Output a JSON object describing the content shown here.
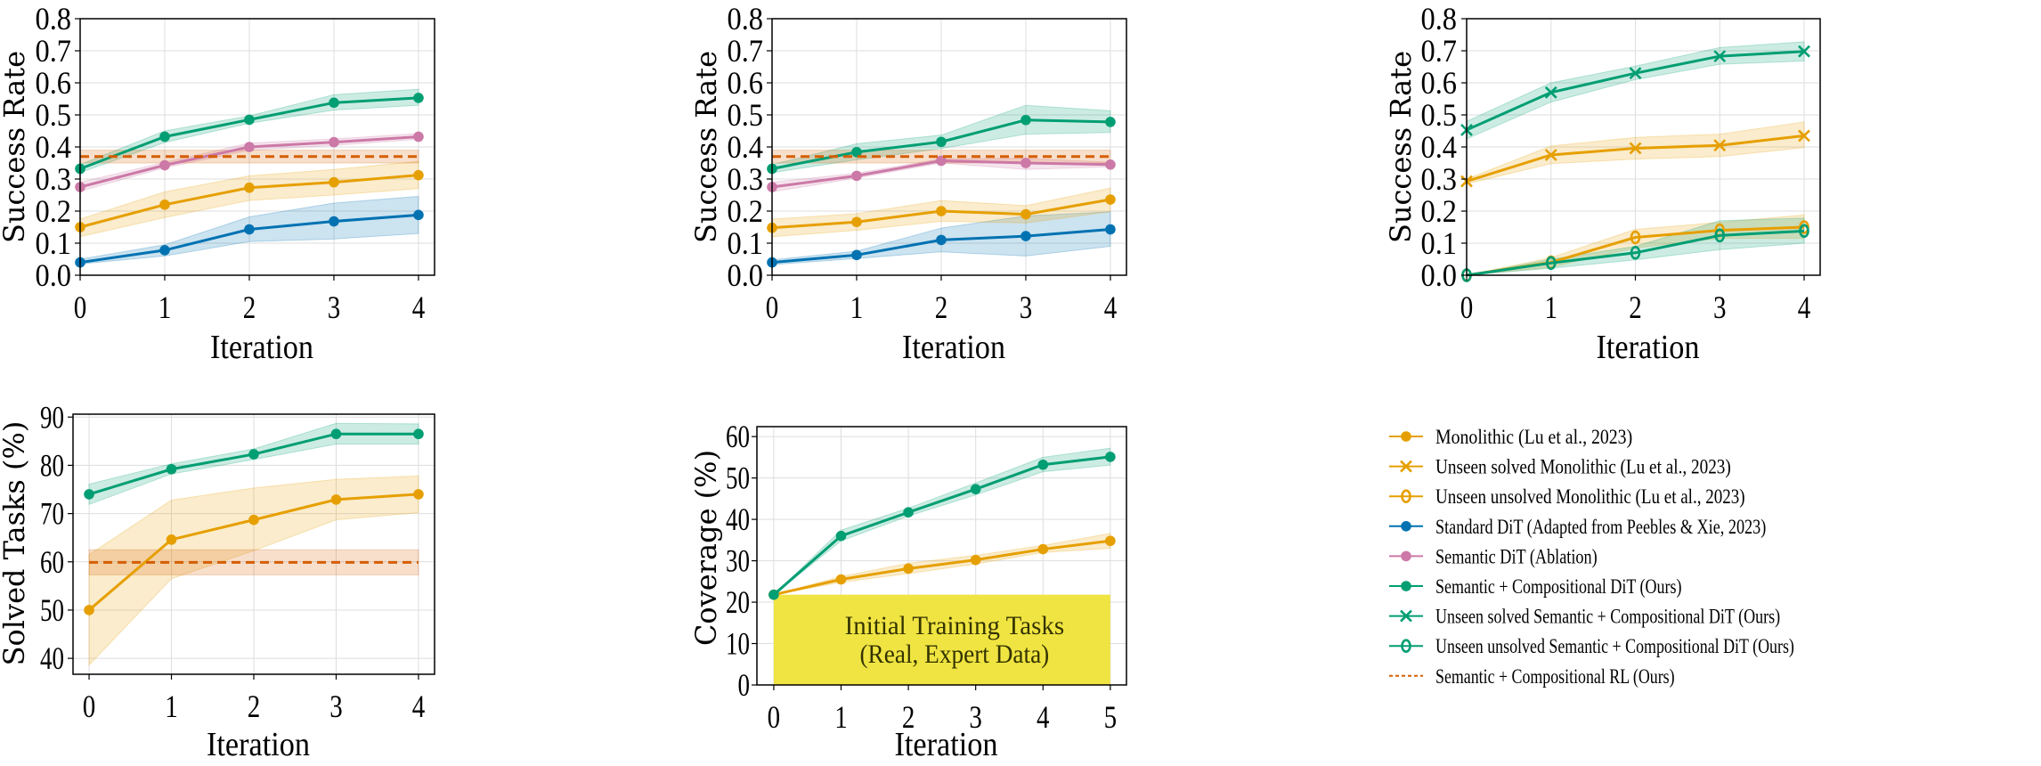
{
  "colors": {
    "monolithic": "#e69f00",
    "standard_dit": "#0072b2",
    "semantic_dit": "#cc79a7",
    "ours": "#009e73",
    "rl": "#d55e00",
    "initial_region": "#f0e442",
    "grid": "#dddddd"
  },
  "legend": {
    "placement": "right",
    "entries": [
      {
        "label": "Monolithic (Lu et al., 2023)",
        "color": "#e69f00",
        "marker": "circle",
        "style": "solid"
      },
      {
        "label": "Unseen solved Monolithic (Lu et al., 2023)",
        "color": "#e69f00",
        "marker": "x",
        "style": "solid"
      },
      {
        "label": "Unseen unsolved Monolithic (Lu et al., 2023)",
        "color": "#e69f00",
        "marker": "hollow-o",
        "style": "solid"
      },
      {
        "label": "Standard DiT (Adapted from Peebles & Xie, 2023)",
        "color": "#0072b2",
        "marker": "circle",
        "style": "solid"
      },
      {
        "label": "Semantic DiT (Ablation)",
        "color": "#cc79a7",
        "marker": "circle",
        "style": "solid"
      },
      {
        "label": "Semantic + Compositional DiT (Ours)",
        "color": "#009e73",
        "marker": "circle",
        "style": "solid"
      },
      {
        "label": "Unseen solved Semantic + Compositional DiT (Ours)",
        "color": "#009e73",
        "marker": "x",
        "style": "solid"
      },
      {
        "label": "Unseen unsolved Semantic + Compositional DiT (Ours)",
        "color": "#009e73",
        "marker": "hollow-o",
        "style": "solid"
      },
      {
        "label": "Semantic + Compositional RL (Ours)",
        "color": "#d55e00",
        "marker": "none",
        "style": "dashed"
      }
    ]
  },
  "chart_data": [
    {
      "type": "line",
      "xlabel": "Iteration",
      "ylabel": "Success Rate",
      "x": [
        0,
        1,
        2,
        3,
        4
      ],
      "xticks": [
        "0",
        "1",
        "2",
        "3",
        "4"
      ],
      "yticks": [
        "0.0",
        "0.1",
        "0.2",
        "0.3",
        "0.4",
        "0.5",
        "0.6",
        "0.7",
        "0.8"
      ],
      "xlim": [
        0,
        4.19
      ],
      "ylim": [
        0,
        0.8
      ],
      "grid": true,
      "series": [
        {
          "legend": 3,
          "marker": "circle",
          "color": "#0072b2",
          "values": [
            0.04,
            0.078,
            0.143,
            0.168,
            0.188
          ],
          "lower": [
            0.035,
            0.06,
            0.105,
            0.113,
            0.13
          ],
          "upper": [
            0.05,
            0.095,
            0.182,
            0.225,
            0.246
          ]
        },
        {
          "legend": 0,
          "marker": "circle",
          "color": "#e69f00",
          "values": [
            0.15,
            0.22,
            0.273,
            0.29,
            0.312
          ],
          "lower": [
            0.12,
            0.18,
            0.233,
            0.25,
            0.27
          ],
          "upper": [
            0.175,
            0.26,
            0.31,
            0.33,
            0.355
          ]
        },
        {
          "legend": 4,
          "marker": "circle",
          "color": "#cc79a7",
          "values": [
            0.275,
            0.343,
            0.4,
            0.415,
            0.432
          ],
          "lower": [
            0.262,
            0.335,
            0.39,
            0.405,
            0.424
          ],
          "upper": [
            0.29,
            0.352,
            0.412,
            0.425,
            0.442
          ]
        },
        {
          "legend": 5,
          "marker": "circle",
          "color": "#009e73",
          "values": [
            0.332,
            0.432,
            0.485,
            0.538,
            0.553
          ],
          "lower": [
            0.32,
            0.414,
            0.474,
            0.515,
            0.53
          ],
          "upper": [
            0.345,
            0.45,
            0.497,
            0.563,
            0.58
          ]
        },
        {
          "legend": 8,
          "marker": "none",
          "dashed": true,
          "color": "#d55e00",
          "values": [
            0.37,
            0.37,
            0.37,
            0.37,
            0.37
          ],
          "lower": [
            0.35,
            0.35,
            0.35,
            0.35,
            0.35
          ],
          "upper": [
            0.39,
            0.39,
            0.39,
            0.39,
            0.39
          ]
        }
      ]
    },
    {
      "type": "line",
      "xlabel": "Iteration",
      "ylabel": "Success Rate",
      "x": [
        0,
        1,
        2,
        3,
        4
      ],
      "xticks": [
        "0",
        "1",
        "2",
        "3",
        "4"
      ],
      "yticks": [
        "0.0",
        "0.1",
        "0.2",
        "0.3",
        "0.4",
        "0.5",
        "0.6",
        "0.7",
        "0.8"
      ],
      "xlim": [
        0,
        4.19
      ],
      "ylim": [
        0,
        0.8
      ],
      "grid": true,
      "series": [
        {
          "legend": 3,
          "marker": "circle",
          "color": "#0072b2",
          "values": [
            0.04,
            0.063,
            0.11,
            0.122,
            0.143
          ],
          "lower": [
            0.033,
            0.052,
            0.073,
            0.06,
            0.09
          ],
          "upper": [
            0.048,
            0.075,
            0.147,
            0.185,
            0.198
          ]
        },
        {
          "legend": 0,
          "marker": "circle",
          "color": "#e69f00",
          "values": [
            0.148,
            0.166,
            0.2,
            0.19,
            0.236
          ],
          "lower": [
            0.12,
            0.14,
            0.168,
            0.163,
            0.198
          ],
          "upper": [
            0.175,
            0.192,
            0.233,
            0.217,
            0.272
          ]
        },
        {
          "legend": 4,
          "marker": "circle",
          "color": "#cc79a7",
          "values": [
            0.275,
            0.31,
            0.357,
            0.35,
            0.345
          ],
          "lower": [
            0.26,
            0.303,
            0.35,
            0.33,
            0.338
          ],
          "upper": [
            0.29,
            0.318,
            0.363,
            0.365,
            0.352
          ]
        },
        {
          "legend": 5,
          "marker": "circle",
          "color": "#009e73",
          "values": [
            0.332,
            0.384,
            0.416,
            0.484,
            0.478
          ],
          "lower": [
            0.32,
            0.36,
            0.395,
            0.44,
            0.445
          ],
          "upper": [
            0.345,
            0.41,
            0.437,
            0.53,
            0.513
          ]
        },
        {
          "legend": 8,
          "marker": "none",
          "dashed": true,
          "color": "#d55e00",
          "values": [
            0.37,
            0.37,
            0.37,
            0.37,
            0.37
          ],
          "lower": [
            0.35,
            0.35,
            0.35,
            0.35,
            0.35
          ],
          "upper": [
            0.39,
            0.39,
            0.39,
            0.39,
            0.39
          ]
        }
      ]
    },
    {
      "type": "line",
      "xlabel": "Iteration",
      "ylabel": "Success Rate",
      "x": [
        0,
        1,
        2,
        3,
        4
      ],
      "xticks": [
        "0",
        "1",
        "2",
        "3",
        "4"
      ],
      "yticks": [
        "0.0",
        "0.1",
        "0.2",
        "0.3",
        "0.4",
        "0.5",
        "0.6",
        "0.7",
        "0.8"
      ],
      "xlim": [
        0,
        4.19
      ],
      "ylim": [
        0,
        0.8
      ],
      "grid": true,
      "series": [
        {
          "legend": 6,
          "marker": "x",
          "color": "#009e73",
          "values": [
            0.453,
            0.57,
            0.63,
            0.683,
            0.698
          ],
          "lower": [
            0.425,
            0.54,
            0.61,
            0.658,
            0.668
          ],
          "upper": [
            0.48,
            0.6,
            0.652,
            0.71,
            0.728
          ]
        },
        {
          "legend": 1,
          "marker": "x",
          "color": "#e69f00",
          "values": [
            0.293,
            0.375,
            0.396,
            0.405,
            0.435
          ],
          "lower": [
            0.285,
            0.348,
            0.362,
            0.37,
            0.398
          ],
          "upper": [
            0.3,
            0.403,
            0.43,
            0.44,
            0.478
          ]
        },
        {
          "legend": 2,
          "marker": "hollow-o",
          "color": "#e69f00",
          "values": [
            0.0,
            0.04,
            0.118,
            0.14,
            0.15
          ],
          "lower": [
            0.0,
            0.025,
            0.085,
            0.115,
            0.115
          ],
          "upper": [
            0.0,
            0.055,
            0.143,
            0.165,
            0.188
          ]
        },
        {
          "legend": 7,
          "marker": "hollow-o",
          "color": "#009e73",
          "values": [
            0.0,
            0.038,
            0.07,
            0.124,
            0.138
          ],
          "lower": [
            0.0,
            0.022,
            0.048,
            0.08,
            0.1
          ],
          "upper": [
            0.0,
            0.05,
            0.09,
            0.17,
            0.178
          ]
        }
      ]
    },
    {
      "type": "line",
      "xlabel": "Iteration",
      "ylabel": "Solved Tasks (%)",
      "x": [
        0,
        1,
        2,
        3,
        4
      ],
      "xticks": [
        "0",
        "1",
        "2",
        "3",
        "4"
      ],
      "yticks": [
        "40",
        "50",
        "60",
        "70",
        "80",
        "90"
      ],
      "ytick_values": [
        40,
        50,
        60,
        70,
        80,
        90
      ],
      "xlim": [
        -0.195,
        4.195
      ],
      "ylim": [
        36.7,
        90.6
      ],
      "grid": true,
      "series": [
        {
          "legend": 0,
          "marker": "circle",
          "color": "#e69f00",
          "values": [
            50,
            64.6,
            68.7,
            72.9,
            74
          ],
          "lower": [
            38.6,
            56.5,
            62.3,
            68.7,
            70.2
          ],
          "upper": [
            61.5,
            72.8,
            75.3,
            77.1,
            77.8
          ]
        },
        {
          "legend": 5,
          "marker": "circle",
          "color": "#009e73",
          "values": [
            74,
            79.2,
            82.3,
            86.5,
            86.5
          ],
          "lower": [
            71.9,
            78.2,
            81.2,
            84.4,
            84.4
          ],
          "upper": [
            76.1,
            80.3,
            83.4,
            88.7,
            88.6
          ]
        },
        {
          "legend": 8,
          "marker": "none",
          "dashed": true,
          "color": "#d55e00",
          "values": [
            59.9,
            59.9,
            59.9,
            59.9,
            59.9
          ],
          "lower": [
            57.3,
            57.3,
            57.3,
            57.3,
            57.3
          ],
          "upper": [
            62.5,
            62.5,
            62.5,
            62.5,
            62.5
          ]
        }
      ]
    },
    {
      "type": "line",
      "xlabel": "Iteration",
      "ylabel": "Coverage (%)",
      "x": [
        0,
        1,
        2,
        3,
        4,
        5
      ],
      "xticks": [
        "0",
        "1",
        "2",
        "3",
        "4",
        "5"
      ],
      "yticks": [
        "0",
        "10",
        "20",
        "30",
        "40",
        "50",
        "60"
      ],
      "ytick_values": [
        0,
        10,
        20,
        30,
        40,
        50,
        60
      ],
      "xlim": [
        -0.25,
        5.24
      ],
      "ylim": [
        0,
        62.4
      ],
      "grid": true,
      "shaded_region": {
        "x": [
          0,
          5
        ],
        "y": [
          0,
          21.8
        ],
        "color": "#f0e442",
        "label_lines": [
          "Initial Training Tasks",
          "(Real, Expert Data)"
        ]
      },
      "series": [
        {
          "legend": 0,
          "marker": "circle",
          "color": "#e69f00",
          "values": [
            21.8,
            25.5,
            28.1,
            30.2,
            32.8,
            34.8
          ],
          "lower": [
            21.8,
            24.8,
            26.9,
            29.2,
            32.0,
            33.0
          ],
          "upper": [
            21.8,
            26.2,
            29.4,
            31.3,
            33.7,
            36.6
          ]
        },
        {
          "legend": 5,
          "marker": "circle",
          "color": "#009e73",
          "values": [
            21.8,
            36,
            41.7,
            47.3,
            53.2,
            55.1
          ],
          "lower": [
            21.8,
            34.8,
            40.8,
            45.9,
            51.5,
            53.1
          ],
          "upper": [
            21.8,
            37.4,
            42.7,
            48.8,
            55.0,
            57.2
          ]
        }
      ]
    }
  ]
}
